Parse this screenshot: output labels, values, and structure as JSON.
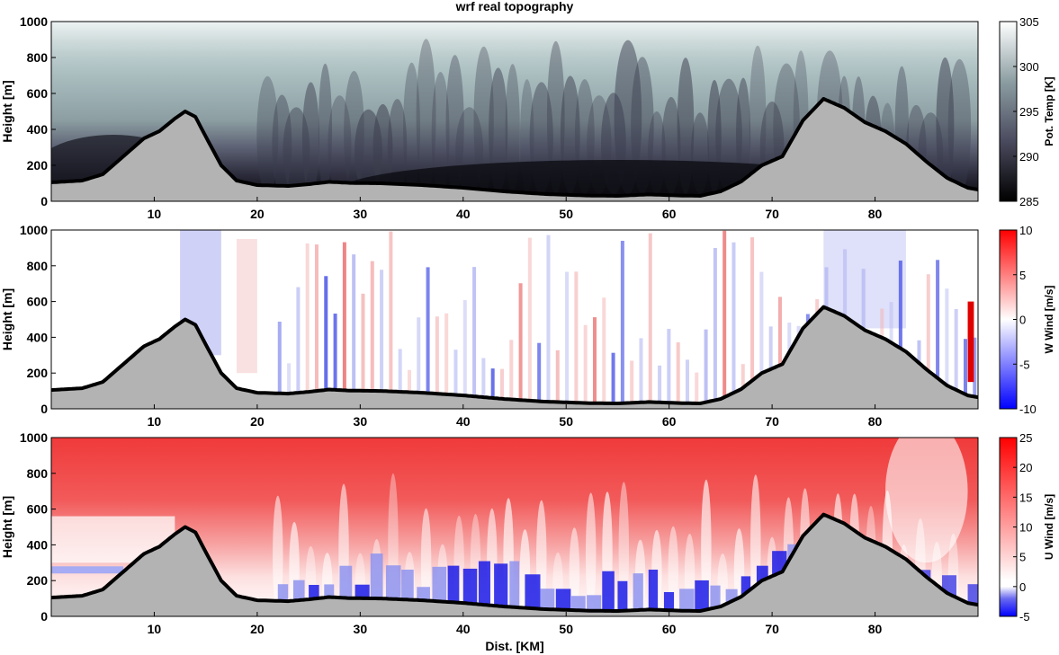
{
  "title": "wrf real topography",
  "xlabel": "Dist. [KM]",
  "chart_data": [
    {
      "type": "heatmap",
      "name": "potential-temperature",
      "variable_label": "Pot. Temp [K]",
      "ylabel": "Height [m]",
      "xlim": [
        0,
        90
      ],
      "ylim": [
        0,
        1000
      ],
      "x_ticks": [
        10,
        20,
        30,
        40,
        50,
        60,
        70,
        80
      ],
      "y_ticks": [
        0,
        200,
        400,
        600,
        800,
        1000
      ],
      "colorbar_range": [
        285,
        305
      ],
      "colorbar_ticks": [
        285,
        290,
        295,
        300,
        305
      ],
      "colormap": [
        "#000000",
        "#4a4a5e",
        "#8c9ea2",
        "#ffffff"
      ]
    },
    {
      "type": "heatmap",
      "name": "vertical-wind",
      "variable_label": "W Wind [m/s]",
      "ylabel": "Height [m]",
      "xlim": [
        0,
        90
      ],
      "ylim": [
        0,
        1000
      ],
      "x_ticks": [
        10,
        20,
        30,
        40,
        50,
        60,
        70,
        80
      ],
      "y_ticks": [
        0,
        200,
        400,
        600,
        800,
        1000
      ],
      "colorbar_range": [
        -10,
        10
      ],
      "colorbar_ticks": [
        -10,
        -5,
        0,
        5,
        10
      ],
      "colormap": [
        "#0000ff",
        "#ffffff",
        "#ff0000"
      ]
    },
    {
      "type": "heatmap",
      "name": "horizontal-wind",
      "variable_label": "U Wind [m/s]",
      "ylabel": "Height [m]",
      "xlim": [
        0,
        90
      ],
      "ylim": [
        0,
        1000
      ],
      "x_ticks": [
        10,
        20,
        30,
        40,
        50,
        60,
        70,
        80
      ],
      "y_ticks": [
        0,
        200,
        400,
        600,
        800,
        1000
      ],
      "colorbar_range": [
        -5,
        25
      ],
      "colorbar_ticks": [
        -5,
        0,
        5,
        10,
        15,
        20,
        25
      ],
      "colormap": [
        "#0000ff",
        "#ffffff",
        "#ff0000"
      ]
    }
  ],
  "terrain": {
    "fill_color": "#b3b3b3",
    "line_color": "#000000",
    "profile_m": [
      [
        0,
        105
      ],
      [
        3,
        115
      ],
      [
        5,
        150
      ],
      [
        7,
        250
      ],
      [
        9,
        350
      ],
      [
        10.5,
        390
      ],
      [
        12,
        460
      ],
      [
        13,
        500
      ],
      [
        14,
        470
      ],
      [
        15,
        360
      ],
      [
        16.5,
        200
      ],
      [
        18,
        115
      ],
      [
        20,
        90
      ],
      [
        23,
        85
      ],
      [
        25,
        95
      ],
      [
        27,
        108
      ],
      [
        29,
        102
      ],
      [
        32,
        100
      ],
      [
        36,
        90
      ],
      [
        40,
        75
      ],
      [
        44,
        55
      ],
      [
        48,
        40
      ],
      [
        52,
        32
      ],
      [
        55,
        30
      ],
      [
        58,
        38
      ],
      [
        61,
        32
      ],
      [
        63,
        30
      ],
      [
        65,
        55
      ],
      [
        67,
        110
      ],
      [
        69,
        200
      ],
      [
        71,
        250
      ],
      [
        73,
        450
      ],
      [
        75,
        570
      ],
      [
        77,
        520
      ],
      [
        79,
        440
      ],
      [
        81,
        390
      ],
      [
        83,
        320
      ],
      [
        85,
        220
      ],
      [
        87,
        130
      ],
      [
        89,
        75
      ],
      [
        90,
        65
      ]
    ]
  }
}
